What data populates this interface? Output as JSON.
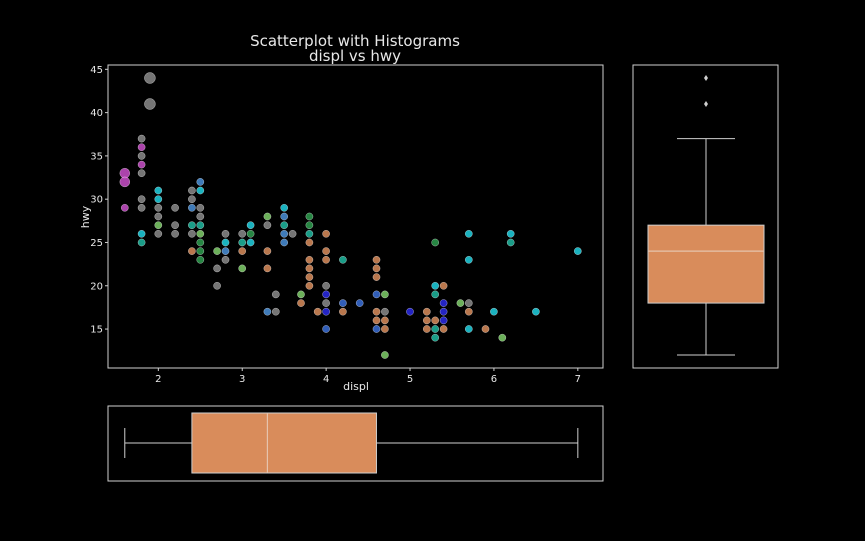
{
  "chart_data": {
    "type": "scatter",
    "title": "Scatterplot with Histograms",
    "subtitle": "displ vs hwy",
    "xlabel": "displ",
    "ylabel": "hwy",
    "xlim": [
      1.4,
      7.3
    ],
    "ylim": [
      10.5,
      45.5
    ],
    "x_ticks": [
      2,
      3,
      4,
      5,
      6,
      7
    ],
    "y_ticks": [
      15,
      20,
      25,
      30,
      35,
      40,
      45
    ],
    "grid": false,
    "legend": "none",
    "colors": {
      "background": "#000000",
      "axes": "#cfcfcf",
      "box_fill": "#d98c5b",
      "box_median": "#e6c3ac",
      "magenta": "#c94fc9",
      "grey": "#8a8a8a",
      "cyan": "#1fd1e0",
      "teal": "#1fb8a0",
      "green": "#2e9e4f",
      "lightgreen": "#7fcf6a",
      "blue": "#3a6fd8",
      "navy": "#2a2ae6",
      "orange": "#d98c5b",
      "steel": "#4a90d9"
    },
    "points": [
      [
        1.6,
        33,
        "magenta"
      ],
      [
        1.6,
        32,
        "magenta"
      ],
      [
        1.6,
        29,
        "magenta"
      ],
      [
        1.8,
        37,
        "grey"
      ],
      [
        1.8,
        36,
        "magenta"
      ],
      [
        1.8,
        35,
        "grey"
      ],
      [
        1.8,
        34,
        "magenta"
      ],
      [
        1.8,
        33,
        "grey"
      ],
      [
        1.8,
        30,
        "grey"
      ],
      [
        1.8,
        29,
        "grey"
      ],
      [
        1.8,
        26,
        "cyan"
      ],
      [
        1.8,
        25,
        "teal"
      ],
      [
        1.9,
        44,
        "grey"
      ],
      [
        1.9,
        41,
        "grey"
      ],
      [
        2.0,
        31,
        "cyan"
      ],
      [
        2.0,
        30,
        "cyan"
      ],
      [
        2.0,
        29,
        "grey"
      ],
      [
        2.0,
        28,
        "grey"
      ],
      [
        2.0,
        27,
        "lightgreen"
      ],
      [
        2.0,
        26,
        "grey"
      ],
      [
        2.2,
        29,
        "grey"
      ],
      [
        2.2,
        27,
        "grey"
      ],
      [
        2.2,
        26,
        "grey"
      ],
      [
        2.4,
        31,
        "grey"
      ],
      [
        2.4,
        30,
        "grey"
      ],
      [
        2.4,
        29,
        "steel"
      ],
      [
        2.4,
        27,
        "teal"
      ],
      [
        2.4,
        26,
        "grey"
      ],
      [
        2.4,
        24,
        "orange"
      ],
      [
        2.5,
        32,
        "steel"
      ],
      [
        2.5,
        31,
        "cyan"
      ],
      [
        2.5,
        29,
        "grey"
      ],
      [
        2.5,
        28,
        "grey"
      ],
      [
        2.5,
        27,
        "teal"
      ],
      [
        2.5,
        26,
        "lightgreen"
      ],
      [
        2.5,
        25,
        "green"
      ],
      [
        2.5,
        24,
        "green"
      ],
      [
        2.5,
        23,
        "green"
      ],
      [
        2.7,
        24,
        "lightgreen"
      ],
      [
        2.7,
        22,
        "grey"
      ],
      [
        2.7,
        20,
        "grey"
      ],
      [
        2.8,
        26,
        "grey"
      ],
      [
        2.8,
        25,
        "cyan"
      ],
      [
        2.8,
        24,
        "steel"
      ],
      [
        2.8,
        23,
        "grey"
      ],
      [
        3.0,
        26,
        "grey"
      ],
      [
        3.0,
        25,
        "teal"
      ],
      [
        3.0,
        24,
        "orange"
      ],
      [
        3.0,
        22,
        "lightgreen"
      ],
      [
        3.1,
        27,
        "cyan"
      ],
      [
        3.1,
        26,
        "green"
      ],
      [
        3.1,
        25,
        "cyan"
      ],
      [
        3.3,
        28,
        "lightgreen"
      ],
      [
        3.3,
        27,
        "grey"
      ],
      [
        3.3,
        24,
        "orange"
      ],
      [
        3.3,
        22,
        "orange"
      ],
      [
        3.3,
        17,
        "steel"
      ],
      [
        3.4,
        19,
        "grey"
      ],
      [
        3.4,
        17,
        "grey"
      ],
      [
        3.5,
        29,
        "cyan"
      ],
      [
        3.5,
        28,
        "steel"
      ],
      [
        3.5,
        27,
        "teal"
      ],
      [
        3.5,
        26,
        "steel"
      ],
      [
        3.5,
        25,
        "steel"
      ],
      [
        3.6,
        26,
        "grey"
      ],
      [
        3.7,
        19,
        "lightgreen"
      ],
      [
        3.7,
        18,
        "orange"
      ],
      [
        3.8,
        28,
        "green"
      ],
      [
        3.8,
        27,
        "green"
      ],
      [
        3.8,
        26,
        "teal"
      ],
      [
        3.8,
        25,
        "orange"
      ],
      [
        3.8,
        23,
        "orange"
      ],
      [
        3.8,
        22,
        "orange"
      ],
      [
        3.8,
        21,
        "orange"
      ],
      [
        3.8,
        20,
        "orange"
      ],
      [
        3.9,
        17,
        "orange"
      ],
      [
        4.0,
        26,
        "orange"
      ],
      [
        4.0,
        24,
        "orange"
      ],
      [
        4.0,
        23,
        "orange"
      ],
      [
        4.0,
        20,
        "grey"
      ],
      [
        4.0,
        19,
        "navy"
      ],
      [
        4.0,
        18,
        "grey"
      ],
      [
        4.0,
        17,
        "navy"
      ],
      [
        4.0,
        15,
        "blue"
      ],
      [
        4.2,
        23,
        "teal"
      ],
      [
        4.2,
        18,
        "blue"
      ],
      [
        4.2,
        17,
        "orange"
      ],
      [
        4.4,
        18,
        "blue"
      ],
      [
        4.6,
        23,
        "orange"
      ],
      [
        4.6,
        22,
        "orange"
      ],
      [
        4.6,
        21,
        "orange"
      ],
      [
        4.6,
        19,
        "blue"
      ],
      [
        4.6,
        17,
        "orange"
      ],
      [
        4.6,
        16,
        "orange"
      ],
      [
        4.6,
        15,
        "blue"
      ],
      [
        4.7,
        19,
        "lightgreen"
      ],
      [
        4.7,
        17,
        "grey"
      ],
      [
        4.7,
        16,
        "orange"
      ],
      [
        4.7,
        15,
        "orange"
      ],
      [
        4.7,
        12,
        "lightgreen"
      ],
      [
        5.0,
        17,
        "navy"
      ],
      [
        5.2,
        17,
        "orange"
      ],
      [
        5.2,
        16,
        "orange"
      ],
      [
        5.2,
        15,
        "orange"
      ],
      [
        5.3,
        25,
        "green"
      ],
      [
        5.3,
        20,
        "cyan"
      ],
      [
        5.3,
        19,
        "teal"
      ],
      [
        5.3,
        16,
        "orange"
      ],
      [
        5.3,
        15,
        "teal"
      ],
      [
        5.3,
        14,
        "teal"
      ],
      [
        5.4,
        20,
        "orange"
      ],
      [
        5.4,
        18,
        "navy"
      ],
      [
        5.4,
        17,
        "navy"
      ],
      [
        5.4,
        16,
        "navy"
      ],
      [
        5.4,
        15,
        "orange"
      ],
      [
        5.6,
        18,
        "lightgreen"
      ],
      [
        5.7,
        26,
        "cyan"
      ],
      [
        5.7,
        23,
        "cyan"
      ],
      [
        5.7,
        18,
        "grey"
      ],
      [
        5.7,
        17,
        "orange"
      ],
      [
        5.7,
        15,
        "cyan"
      ],
      [
        5.9,
        15,
        "orange"
      ],
      [
        6.0,
        17,
        "cyan"
      ],
      [
        6.1,
        14,
        "lightgreen"
      ],
      [
        6.2,
        26,
        "cyan"
      ],
      [
        6.2,
        25,
        "teal"
      ],
      [
        6.5,
        17,
        "cyan"
      ],
      [
        7.0,
        24,
        "cyan"
      ]
    ],
    "hwy_box": {
      "min": 12,
      "q1": 18,
      "median": 24,
      "q3": 27,
      "max": 37,
      "outliers": [
        41,
        44
      ]
    },
    "displ_box": {
      "min": 1.6,
      "q1": 2.4,
      "median": 3.3,
      "q3": 4.6,
      "max": 7.0,
      "outliers": []
    }
  }
}
